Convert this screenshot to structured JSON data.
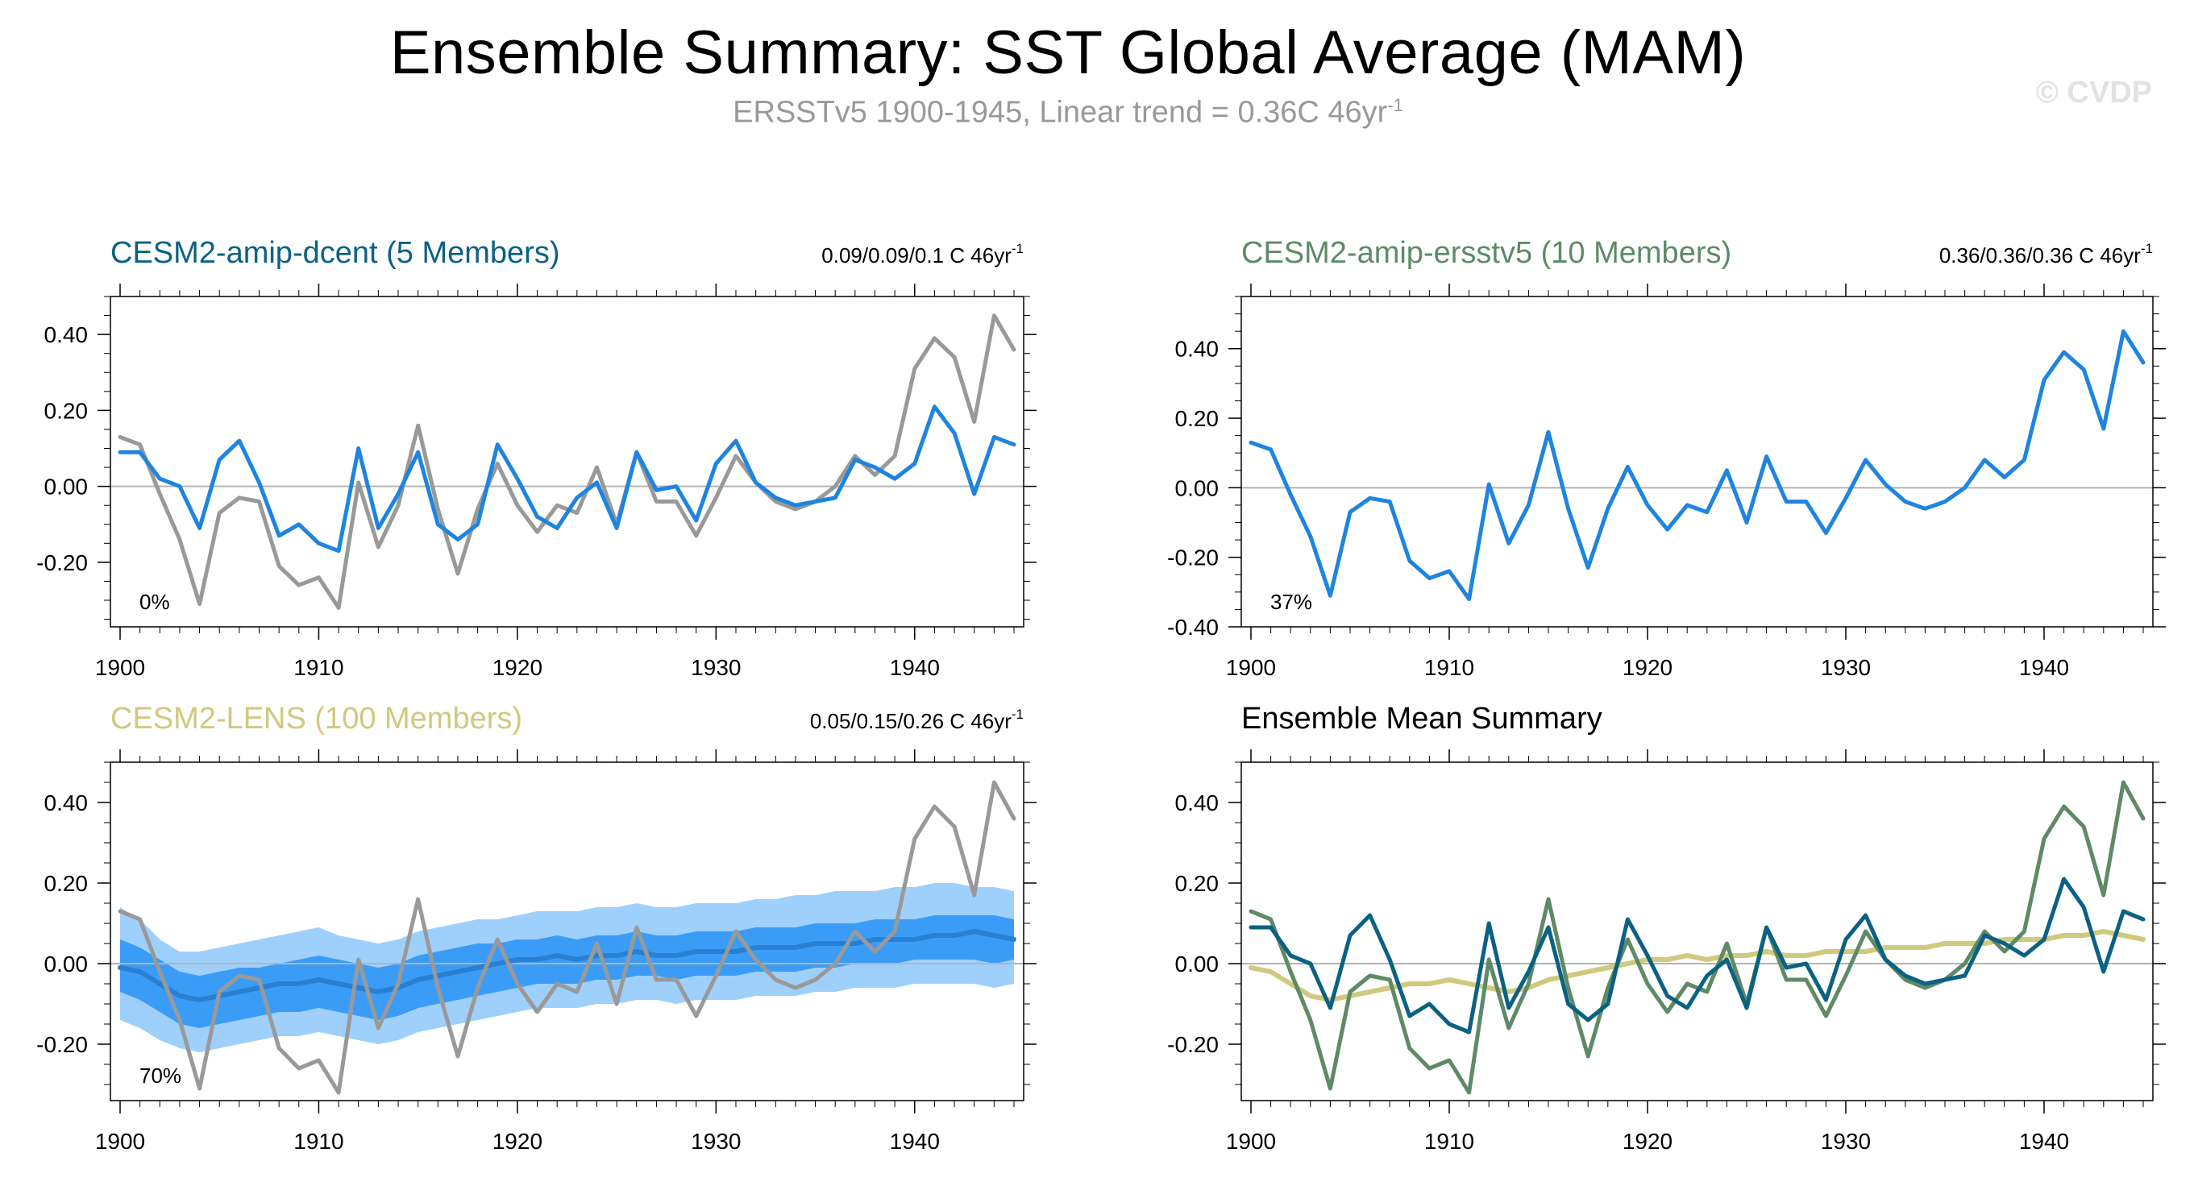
{
  "header": {
    "title": "Ensemble Summary: SST Global Average (MAM)",
    "subtitle_main": "ERSSTv5 1900-1945, Linear trend = 0.36C 46yr",
    "subtitle_sup": "-1",
    "watermark": "© CVDP"
  },
  "colors": {
    "obs": "#999999",
    "model": "#1f84e0",
    "dcent": "#0b6183",
    "ersst": "#5e8a66",
    "lens": "#d0c97e",
    "band_outer": "#9fd0fb",
    "band_inner": "#3a9cf7",
    "zero_line": "#b3b3b3"
  },
  "chart_data": [
    {
      "id": "dcent",
      "type": "line",
      "title": "CESM2-amip-dcent (5 Members)",
      "title_color": "#0b6183",
      "stat": "0.09/0.09/0.1 C 46yr",
      "stat_sup": "-1",
      "pct_label": "0%",
      "xlim": [
        1900,
        1945
      ],
      "ylim": [
        -0.37,
        0.5
      ],
      "yticks": [
        -0.2,
        0.0,
        0.2,
        0.4
      ],
      "ytick_labels": [
        "-0.20",
        "0.00",
        "0.20",
        "0.40"
      ],
      "xticks": [
        1900,
        1910,
        1920,
        1930,
        1940
      ],
      "xtick_labels": [
        "1900",
        "1910",
        "1920",
        "1930",
        "1940"
      ],
      "x_start": 1900,
      "series": [
        {
          "key": "obs",
          "color": "#999999",
          "values": [
            0.13,
            0.11,
            -0.02,
            -0.14,
            -0.31,
            -0.07,
            -0.03,
            -0.04,
            -0.21,
            -0.26,
            -0.24,
            -0.32,
            0.01,
            -0.16,
            -0.05,
            0.16,
            -0.06,
            -0.23,
            -0.06,
            0.06,
            -0.05,
            -0.12,
            -0.05,
            -0.07,
            0.05,
            -0.1,
            0.09,
            -0.04,
            -0.04,
            -0.13,
            -0.03,
            0.08,
            0.01,
            -0.04,
            -0.06,
            -0.04,
            0.0,
            0.08,
            0.03,
            0.08,
            0.31,
            0.39,
            0.34,
            0.17,
            0.45,
            0.36
          ]
        },
        {
          "key": "model",
          "color": "#1f84e0",
          "values": [
            0.09,
            0.09,
            0.02,
            0.0,
            -0.11,
            0.07,
            0.12,
            0.01,
            -0.13,
            -0.1,
            -0.15,
            -0.17,
            0.1,
            -0.11,
            -0.02,
            0.09,
            -0.1,
            -0.14,
            -0.1,
            0.11,
            0.02,
            -0.08,
            -0.11,
            -0.03,
            0.01,
            -0.11,
            0.09,
            -0.01,
            0.0,
            -0.09,
            0.06,
            0.12,
            0.01,
            -0.03,
            -0.05,
            -0.04,
            -0.03,
            0.07,
            0.05,
            0.02,
            0.06,
            0.21,
            0.14,
            -0.02,
            0.13,
            0.11
          ]
        }
      ]
    },
    {
      "id": "ersst",
      "type": "line",
      "title": "CESM2-amip-ersstv5 (10 Members)",
      "title_color": "#5e8a66",
      "stat": "0.36/0.36/0.36 C 46yr",
      "stat_sup": "-1",
      "pct_label": "37%",
      "xlim": [
        1900,
        1945
      ],
      "ylim": [
        -0.4,
        0.55
      ],
      "yticks": [
        -0.4,
        -0.2,
        0.0,
        0.2,
        0.4
      ],
      "ytick_labels": [
        "-0.40",
        "-0.20",
        "0.00",
        "0.20",
        "0.40"
      ],
      "xticks": [
        1900,
        1910,
        1920,
        1930,
        1940
      ],
      "xtick_labels": [
        "1900",
        "1910",
        "1920",
        "1930",
        "1940"
      ],
      "x_start": 1900,
      "series": [
        {
          "key": "model",
          "color": "#1f84e0",
          "values": [
            0.13,
            0.11,
            -0.02,
            -0.14,
            -0.31,
            -0.07,
            -0.03,
            -0.04,
            -0.21,
            -0.26,
            -0.24,
            -0.32,
            0.01,
            -0.16,
            -0.05,
            0.16,
            -0.06,
            -0.23,
            -0.06,
            0.06,
            -0.05,
            -0.12,
            -0.05,
            -0.07,
            0.05,
            -0.1,
            0.09,
            -0.04,
            -0.04,
            -0.13,
            -0.03,
            0.08,
            0.01,
            -0.04,
            -0.06,
            -0.04,
            0.0,
            0.08,
            0.03,
            0.08,
            0.31,
            0.39,
            0.34,
            0.17,
            0.45,
            0.36
          ]
        }
      ]
    },
    {
      "id": "lens",
      "type": "line",
      "title": "CESM2-LENS (100 Members)",
      "title_color": "#d0c97e",
      "stat": "0.05/0.15/0.26 C 46yr",
      "stat_sup": "-1",
      "pct_label": "70%",
      "xlim": [
        1900,
        1945
      ],
      "ylim": [
        -0.34,
        0.5
      ],
      "yticks": [
        -0.2,
        0.0,
        0.2,
        0.4
      ],
      "ytick_labels": [
        "-0.20",
        "0.00",
        "0.20",
        "0.40"
      ],
      "xticks": [
        1900,
        1910,
        1920,
        1930,
        1940
      ],
      "xtick_labels": [
        "1900",
        "1910",
        "1920",
        "1930",
        "1940"
      ],
      "x_start": 1900,
      "band_outer": {
        "upper": [
          0.14,
          0.11,
          0.06,
          0.03,
          0.03,
          0.04,
          0.05,
          0.06,
          0.07,
          0.08,
          0.09,
          0.07,
          0.06,
          0.05,
          0.06,
          0.08,
          0.09,
          0.1,
          0.11,
          0.11,
          0.12,
          0.13,
          0.13,
          0.13,
          0.14,
          0.14,
          0.15,
          0.14,
          0.14,
          0.15,
          0.15,
          0.15,
          0.16,
          0.16,
          0.17,
          0.17,
          0.18,
          0.18,
          0.18,
          0.19,
          0.19,
          0.2,
          0.2,
          0.19,
          0.19,
          0.18
        ],
        "lower": [
          -0.14,
          -0.16,
          -0.19,
          -0.21,
          -0.22,
          -0.21,
          -0.2,
          -0.19,
          -0.18,
          -0.18,
          -0.17,
          -0.18,
          -0.19,
          -0.2,
          -0.19,
          -0.17,
          -0.16,
          -0.15,
          -0.14,
          -0.13,
          -0.12,
          -0.11,
          -0.11,
          -0.11,
          -0.1,
          -0.1,
          -0.09,
          -0.09,
          -0.1,
          -0.09,
          -0.09,
          -0.09,
          -0.08,
          -0.08,
          -0.08,
          -0.07,
          -0.07,
          -0.06,
          -0.06,
          -0.06,
          -0.05,
          -0.05,
          -0.05,
          -0.05,
          -0.06,
          -0.05
        ]
      },
      "band_inner": {
        "upper": [
          0.06,
          0.04,
          0.01,
          -0.02,
          -0.03,
          -0.02,
          -0.01,
          -0.01,
          0.0,
          0.01,
          0.02,
          0.01,
          0.0,
          -0.01,
          0.0,
          0.02,
          0.03,
          0.04,
          0.05,
          0.05,
          0.06,
          0.06,
          0.07,
          0.06,
          0.07,
          0.07,
          0.08,
          0.07,
          0.07,
          0.08,
          0.08,
          0.08,
          0.09,
          0.09,
          0.09,
          0.1,
          0.1,
          0.1,
          0.11,
          0.11,
          0.11,
          0.12,
          0.12,
          0.12,
          0.12,
          0.11
        ],
        "lower": [
          -0.07,
          -0.09,
          -0.12,
          -0.15,
          -0.16,
          -0.15,
          -0.14,
          -0.13,
          -0.12,
          -0.12,
          -0.11,
          -0.12,
          -0.13,
          -0.14,
          -0.13,
          -0.11,
          -0.1,
          -0.09,
          -0.08,
          -0.07,
          -0.06,
          -0.05,
          -0.05,
          -0.05,
          -0.04,
          -0.04,
          -0.03,
          -0.03,
          -0.04,
          -0.03,
          -0.03,
          -0.03,
          -0.02,
          -0.02,
          -0.02,
          -0.01,
          -0.01,
          0.0,
          0.0,
          0.0,
          0.01,
          0.01,
          0.01,
          0.01,
          0.0,
          0.01
        ]
      },
      "series": [
        {
          "key": "model",
          "color": "#2a7fd0",
          "values": [
            -0.01,
            -0.02,
            -0.05,
            -0.08,
            -0.09,
            -0.08,
            -0.07,
            -0.06,
            -0.05,
            -0.05,
            -0.04,
            -0.05,
            -0.06,
            -0.07,
            -0.06,
            -0.04,
            -0.03,
            -0.02,
            -0.01,
            0.0,
            0.01,
            0.01,
            0.02,
            0.01,
            0.02,
            0.02,
            0.03,
            0.02,
            0.02,
            0.03,
            0.03,
            0.03,
            0.04,
            0.04,
            0.04,
            0.05,
            0.05,
            0.05,
            0.06,
            0.06,
            0.06,
            0.07,
            0.07,
            0.08,
            0.07,
            0.06
          ]
        },
        {
          "key": "obs",
          "color": "#999999",
          "values": [
            0.13,
            0.11,
            -0.02,
            -0.14,
            -0.31,
            -0.07,
            -0.03,
            -0.04,
            -0.21,
            -0.26,
            -0.24,
            -0.32,
            0.01,
            -0.16,
            -0.05,
            0.16,
            -0.06,
            -0.23,
            -0.06,
            0.06,
            -0.05,
            -0.12,
            -0.05,
            -0.07,
            0.05,
            -0.1,
            0.09,
            -0.04,
            -0.04,
            -0.13,
            -0.03,
            0.08,
            0.01,
            -0.04,
            -0.06,
            -0.04,
            0.0,
            0.08,
            0.03,
            0.08,
            0.31,
            0.39,
            0.34,
            0.17,
            0.45,
            0.36
          ]
        }
      ]
    },
    {
      "id": "summary",
      "type": "line",
      "title": "Ensemble Mean Summary",
      "title_color": "#000000",
      "stat": "",
      "stat_sup": "",
      "pct_label": "",
      "xlim": [
        1900,
        1945
      ],
      "ylim": [
        -0.34,
        0.5
      ],
      "yticks": [
        -0.2,
        0.0,
        0.2,
        0.4
      ],
      "ytick_labels": [
        "-0.20",
        "0.00",
        "0.20",
        "0.40"
      ],
      "xticks": [
        1900,
        1910,
        1920,
        1930,
        1940
      ],
      "xtick_labels": [
        "1900",
        "1910",
        "1920",
        "1930",
        "1940"
      ],
      "x_start": 1900,
      "series": [
        {
          "key": "lens",
          "color": "#d0c97e",
          "values": [
            -0.01,
            -0.02,
            -0.05,
            -0.08,
            -0.09,
            -0.08,
            -0.07,
            -0.06,
            -0.05,
            -0.05,
            -0.04,
            -0.05,
            -0.06,
            -0.07,
            -0.06,
            -0.04,
            -0.03,
            -0.02,
            -0.01,
            0.0,
            0.01,
            0.01,
            0.02,
            0.01,
            0.02,
            0.02,
            0.03,
            0.02,
            0.02,
            0.03,
            0.03,
            0.03,
            0.04,
            0.04,
            0.04,
            0.05,
            0.05,
            0.05,
            0.06,
            0.06,
            0.06,
            0.07,
            0.07,
            0.08,
            0.07,
            0.06
          ]
        },
        {
          "key": "ersst",
          "color": "#5e8a66",
          "values": [
            0.13,
            0.11,
            -0.02,
            -0.14,
            -0.31,
            -0.07,
            -0.03,
            -0.04,
            -0.21,
            -0.26,
            -0.24,
            -0.32,
            0.01,
            -0.16,
            -0.05,
            0.16,
            -0.06,
            -0.23,
            -0.06,
            0.06,
            -0.05,
            -0.12,
            -0.05,
            -0.07,
            0.05,
            -0.1,
            0.09,
            -0.04,
            -0.04,
            -0.13,
            -0.03,
            0.08,
            0.01,
            -0.04,
            -0.06,
            -0.04,
            0.0,
            0.08,
            0.03,
            0.08,
            0.31,
            0.39,
            0.34,
            0.17,
            0.45,
            0.36
          ]
        },
        {
          "key": "dcent",
          "color": "#0b6183",
          "values": [
            0.09,
            0.09,
            0.02,
            0.0,
            -0.11,
            0.07,
            0.12,
            0.01,
            -0.13,
            -0.1,
            -0.15,
            -0.17,
            0.1,
            -0.11,
            -0.02,
            0.09,
            -0.1,
            -0.14,
            -0.1,
            0.11,
            0.02,
            -0.08,
            -0.11,
            -0.03,
            0.01,
            -0.11,
            0.09,
            -0.01,
            0.0,
            -0.09,
            0.06,
            0.12,
            0.01,
            -0.03,
            -0.05,
            -0.04,
            -0.03,
            0.07,
            0.05,
            0.02,
            0.06,
            0.21,
            0.14,
            -0.02,
            0.13,
            0.11
          ]
        }
      ]
    }
  ]
}
